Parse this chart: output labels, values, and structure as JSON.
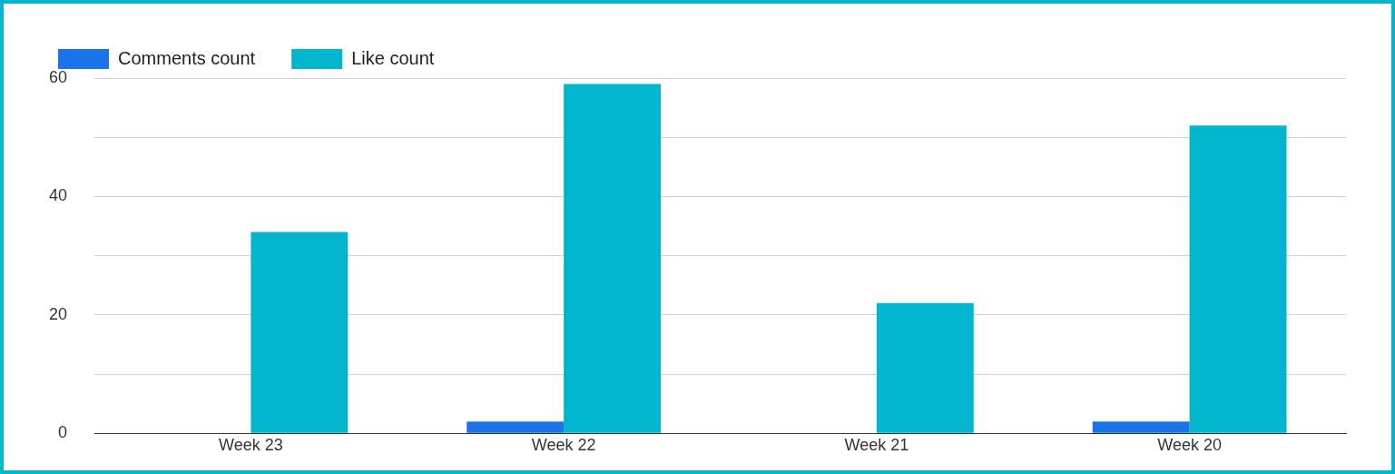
{
  "chart_data": {
    "type": "bar",
    "categories": [
      "Week 23",
      "Week 22",
      "Week 21",
      "Week 20"
    ],
    "series": [
      {
        "name": "Comments count",
        "color": "#1a73e8",
        "values": [
          0,
          2,
          0,
          2
        ]
      },
      {
        "name": "Like count",
        "color": "#00b5cc",
        "values": [
          34,
          59,
          22,
          52
        ]
      }
    ],
    "ylim": [
      0,
      60
    ],
    "yticks": [
      0,
      {
        "value": 10,
        "label": null
      },
      20,
      {
        "value": 30,
        "label": null
      },
      40,
      {
        "value": 50,
        "label": null
      },
      60
    ],
    "grid": "y",
    "legend": "top left"
  }
}
